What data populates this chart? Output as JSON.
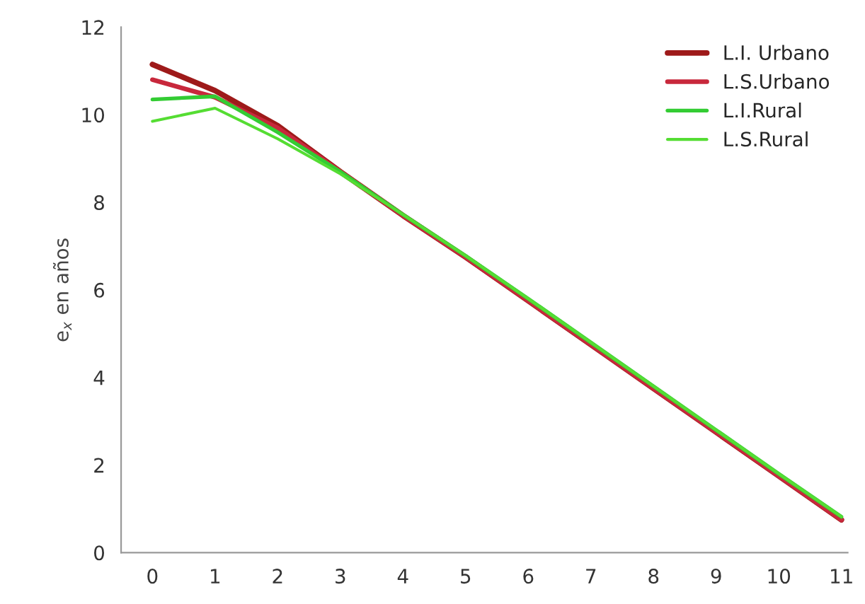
{
  "chart_data": {
    "type": "line",
    "ylabel": "e$_{x}$ en años",
    "categories": [
      "0",
      "1",
      "2",
      "3",
      "4",
      "5",
      "6",
      "7",
      "8",
      "9",
      "10",
      "11"
    ],
    "series": [
      {
        "name": "L.I. Urbano",
        "color": "#9e1a1a",
        "values": [
          11.15,
          10.55,
          9.75,
          8.7,
          7.7,
          6.75,
          5.75,
          4.75,
          3.75,
          2.75,
          1.75,
          0.75
        ]
      },
      {
        "name": "L.S.Urbano",
        "color": "#c8283c",
        "values": [
          10.8,
          10.4,
          9.7,
          8.7,
          7.7,
          6.75,
          5.75,
          4.75,
          3.75,
          2.75,
          1.75,
          0.75
        ]
      },
      {
        "name": "L.I.Rural",
        "color": "#33cc33",
        "values": [
          10.35,
          10.42,
          9.6,
          8.7,
          7.72,
          6.78,
          5.8,
          4.8,
          3.8,
          2.8,
          1.8,
          0.82
        ]
      },
      {
        "name": "L.S.Rural",
        "color": "#55dd33",
        "values": [
          9.85,
          10.15,
          9.45,
          8.65,
          7.72,
          6.78,
          5.8,
          4.8,
          3.8,
          2.8,
          1.8,
          0.82
        ]
      }
    ],
    "ylim": [
      0,
      12
    ],
    "yticks": [
      0,
      2,
      4,
      6,
      8,
      10,
      12
    ],
    "grid": false,
    "legend": "top right",
    "line_style": "solid",
    "marker": "none"
  }
}
